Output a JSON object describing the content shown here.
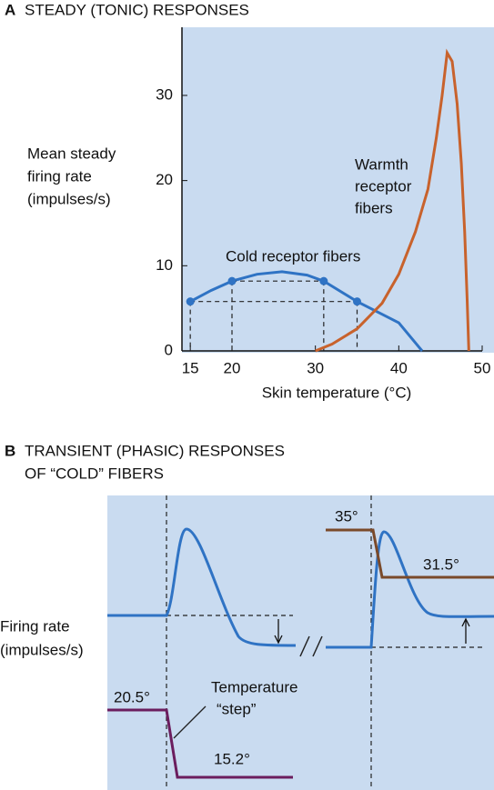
{
  "chart_data": {
    "type": "line",
    "letter": "A",
    "title": "STEADY (TONIC) RESPONSES",
    "y_label_lines": [
      "Mean steady",
      "firing rate",
      "(impulses/s)"
    ],
    "x_label": "Skin temperature (°C)",
    "xlim": [
      14,
      50
    ],
    "xticks": [
      15,
      20,
      30,
      40,
      50
    ],
    "ylim": [
      0,
      38
    ],
    "yticks": [
      0,
      10,
      20,
      30
    ],
    "series": [
      {
        "name": "Cold receptor fibers",
        "color": "#2f73c4",
        "x": [
          15,
          17.5,
          20,
          23,
          26,
          29,
          31,
          35,
          38,
          40,
          42.8
        ],
        "values": [
          5.8,
          7.1,
          8.2,
          9.0,
          9.3,
          8.9,
          8.2,
          5.8,
          4.3,
          3.3,
          0
        ],
        "points": {
          "x": [
            15,
            20,
            31,
            35
          ],
          "values": [
            5.8,
            8.2,
            8.2,
            5.8
          ]
        }
      },
      {
        "name_lines": [
          "Warmth",
          "receptor",
          "fibers"
        ],
        "color": "#c8622c",
        "x": [
          30,
          32,
          35,
          38,
          40,
          42,
          43.5,
          44.5,
          45.2,
          45.8,
          46.4,
          47,
          47.5,
          47.9,
          48.2,
          48.4
        ],
        "values": [
          0,
          0.8,
          2.6,
          5.6,
          9,
          14,
          19,
          25,
          30,
          35,
          34,
          29,
          22,
          14,
          6,
          0
        ]
      }
    ]
  },
  "panel_b": {
    "letter": "B",
    "title_lines": [
      "TRANSIENT (PHASIC) RESPONSES",
      "OF “COLD” FIBERS"
    ],
    "y_label_lines": [
      "Firing rate",
      "(impulses/s)"
    ],
    "labels": {
      "start_high": "35°",
      "end_high": "31.5°",
      "start_low": "20.5°",
      "step_1": "Temperature",
      "step_2": "“step”",
      "end_low": "15.2°"
    }
  }
}
